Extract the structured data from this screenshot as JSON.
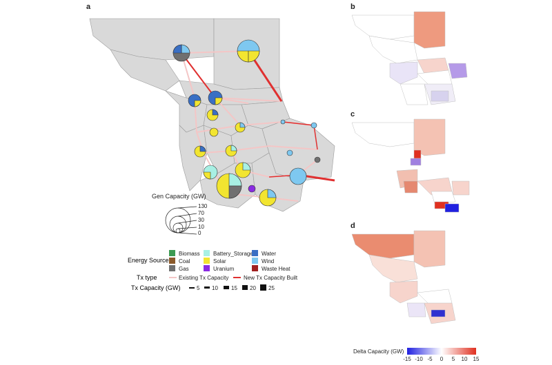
{
  "panels": {
    "a": "a",
    "b": "b",
    "c": "c",
    "d": "d"
  },
  "gen_capacity": {
    "title": "Gen Capacity (GW)",
    "ticks": [
      "130",
      "70",
      "30",
      "10",
      "0"
    ]
  },
  "energy_source": {
    "title": "Energy Source",
    "items": [
      {
        "label": "Biomass",
        "color": "#3c9a52"
      },
      {
        "label": "Coal",
        "color": "#8b5a2b"
      },
      {
        "label": "Gas",
        "color": "#707070"
      },
      {
        "label": "Battery_Storage",
        "color": "#a8f0e4"
      },
      {
        "label": "Solar",
        "color": "#f2e530"
      },
      {
        "label": "Uranium",
        "color": "#8a2be2"
      },
      {
        "label": "Water",
        "color": "#3a6fc4"
      },
      {
        "label": "Wind",
        "color": "#7ec8f0"
      },
      {
        "label": "Waste Heat",
        "color": "#a02020"
      }
    ]
  },
  "tx_type": {
    "title": "Tx type",
    "items": [
      {
        "label": "Existing Tx Capacity",
        "color": "#f4c6c6"
      },
      {
        "label": "New Tx Capacity Built",
        "color": "#e03030"
      }
    ]
  },
  "tx_capacity": {
    "title": "Tx Capacity (GW)",
    "values": [
      "5",
      "10",
      "15",
      "20",
      "25"
    ]
  },
  "delta_scale": {
    "title": "Delta Capacity (GW)",
    "ticks": [
      "-15",
      "-10",
      "-5",
      "0",
      "5",
      "10",
      "15"
    ],
    "colors": [
      "#2020e0",
      "#ffffff",
      "#e03020"
    ]
  }
}
